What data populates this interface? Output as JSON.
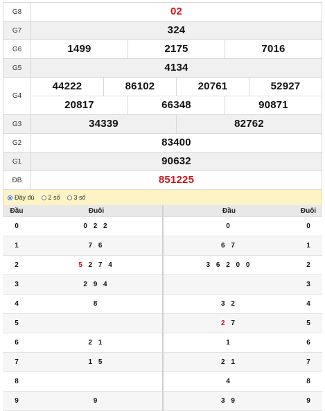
{
  "prizes": {
    "g8": {
      "label": "G8",
      "value": "02"
    },
    "g7": {
      "label": "G7",
      "value": "324"
    },
    "g6": {
      "label": "G6",
      "values": [
        "1499",
        "2175",
        "7016"
      ]
    },
    "g5": {
      "label": "G5",
      "value": "4134"
    },
    "g4": {
      "label": "G4",
      "row1": [
        "44222",
        "86102",
        "20761",
        "52927"
      ],
      "row2": [
        "20817",
        "66348",
        "90871"
      ]
    },
    "g3": {
      "label": "G3",
      "values": [
        "34339",
        "82762"
      ]
    },
    "g2": {
      "label": "G2",
      "value": "83400"
    },
    "g1": {
      "label": "G1",
      "value": "90632"
    },
    "db": {
      "label": "ĐB",
      "value": "851225"
    }
  },
  "options": {
    "full": "Đầy đủ",
    "two": "2 số",
    "three": "3 số"
  },
  "loto_head": {
    "head": "Đầu",
    "tail": "Đuôi",
    "rows": [
      {
        "k": "0",
        "pre": "",
        "rest": "0 2 2"
      },
      {
        "k": "1",
        "pre": "",
        "rest": "7 6"
      },
      {
        "k": "2",
        "pre": "5",
        "rest": " 2 7 4"
      },
      {
        "k": "3",
        "pre": "",
        "rest": "2 9 4"
      },
      {
        "k": "4",
        "pre": "",
        "rest": "8"
      },
      {
        "k": "5",
        "pre": "",
        "rest": ""
      },
      {
        "k": "6",
        "pre": "",
        "rest": "2 1"
      },
      {
        "k": "7",
        "pre": "",
        "rest": "1 5"
      },
      {
        "k": "8",
        "pre": "",
        "rest": ""
      },
      {
        "k": "9",
        "pre": "",
        "rest": "9"
      }
    ]
  },
  "loto_tail": {
    "head": "Đầu",
    "tail": "Đuôi",
    "rows": [
      {
        "k": "0",
        "pre": "",
        "rest": "0"
      },
      {
        "k": "1",
        "pre": "",
        "rest": "6 7"
      },
      {
        "k": "2",
        "pre": "",
        "rest": "3 6 2 0 0"
      },
      {
        "k": "3",
        "pre": "",
        "rest": ""
      },
      {
        "k": "4",
        "pre": "",
        "rest": "3 2"
      },
      {
        "k": "5",
        "pre": "2",
        "rest": " 7"
      },
      {
        "k": "6",
        "pre": "",
        "rest": "1"
      },
      {
        "k": "7",
        "pre": "",
        "rest": "2 1"
      },
      {
        "k": "8",
        "pre": "",
        "rest": "4"
      },
      {
        "k": "9",
        "pre": "",
        "rest": "3 9"
      }
    ]
  },
  "colors": {
    "accent_red": "#c8161d",
    "options_bg": "#fdf3c4"
  }
}
